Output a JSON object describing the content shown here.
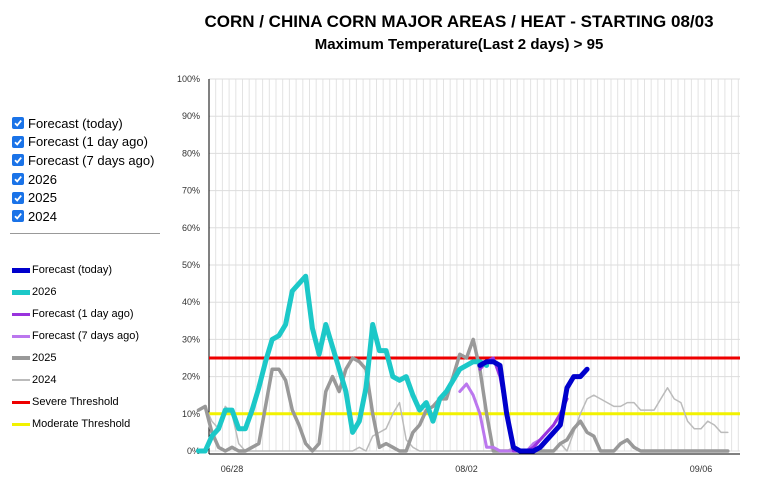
{
  "chart_data": {
    "type": "line",
    "title": "CORN / CHINA CORN MAJOR AREAS / HEAT - STARTING 08/03",
    "subtitle": "Maximum Temperature(Last 2 days) > 95",
    "ylim": [
      0,
      100
    ],
    "y_ticks": [
      "0%",
      "10%",
      "20%",
      "30%",
      "40%",
      "50%",
      "60%",
      "70%",
      "80%",
      "90%",
      "100%"
    ],
    "x_domain": [
      0,
      75
    ],
    "x_ticks": [
      {
        "x": 5,
        "label": "06/28"
      },
      {
        "x": 40,
        "label": "08/02"
      },
      {
        "x": 75,
        "label": "09/06"
      }
    ],
    "grid": true,
    "legend_position": "left",
    "series": [
      {
        "name": "2024",
        "color": "#bbbbbb",
        "width": 1.5,
        "x": [
          0,
          1,
          2,
          3,
          4,
          5,
          6,
          7,
          8,
          9,
          10,
          11,
          12,
          13,
          14,
          15,
          16,
          17,
          18,
          19,
          20,
          21,
          22,
          23,
          24,
          25,
          26,
          27,
          28,
          29,
          30,
          31,
          32,
          33,
          34,
          35,
          36,
          37,
          38,
          39,
          40,
          41,
          42,
          43,
          44,
          45,
          46,
          47,
          48,
          49,
          50,
          51,
          52,
          53,
          54,
          55,
          56,
          57,
          58,
          59,
          60,
          61,
          62,
          63,
          64,
          65,
          66,
          67,
          68,
          69,
          70,
          71,
          72,
          73,
          74,
          75,
          76,
          77,
          78,
          79
        ],
        "values": [
          11,
          12,
          8,
          6,
          12,
          10,
          2,
          0,
          0,
          0,
          0,
          0,
          0,
          0,
          0,
          0,
          0,
          0,
          0,
          0,
          0,
          0,
          0,
          0,
          1,
          0,
          4,
          5,
          6,
          10,
          13,
          3,
          1,
          0,
          0,
          0,
          0,
          0,
          0,
          0,
          0,
          0,
          0,
          0,
          0,
          0,
          0,
          1,
          0,
          0,
          1,
          0,
          0,
          0,
          2,
          0,
          5,
          10,
          14,
          15,
          14,
          13,
          12,
          12,
          13,
          13,
          11,
          11,
          11,
          14,
          17,
          14,
          13,
          8,
          6,
          6,
          8,
          7,
          5,
          5
        ]
      },
      {
        "name": "2025",
        "color": "#999999",
        "width": 3.5,
        "x": [
          0,
          1,
          2,
          3,
          4,
          5,
          6,
          7,
          8,
          9,
          10,
          11,
          12,
          13,
          14,
          15,
          16,
          17,
          18,
          19,
          20,
          21,
          22,
          23,
          24,
          25,
          26,
          27,
          28,
          29,
          30,
          31,
          32,
          33,
          34,
          35,
          36,
          37,
          38,
          39,
          40,
          41,
          42,
          43,
          44,
          45,
          46,
          47,
          48,
          49,
          50,
          51,
          52,
          53,
          54,
          55,
          56,
          57,
          58,
          59,
          60,
          61,
          62,
          63,
          64,
          65,
          66,
          67,
          68,
          69,
          70,
          71,
          72,
          73,
          74,
          75,
          76,
          77,
          78,
          79
        ],
        "values": [
          11,
          12,
          5,
          1,
          0,
          1,
          0,
          0,
          1,
          2,
          12,
          22,
          22,
          19,
          11,
          7,
          2,
          0,
          2,
          16,
          20,
          16,
          22,
          25,
          24,
          22,
          10,
          1,
          2,
          1,
          0,
          0,
          5,
          7,
          11,
          12,
          14,
          14,
          20,
          26,
          25,
          30,
          22,
          10,
          0,
          0,
          0,
          0,
          0,
          0,
          0,
          0,
          0,
          0,
          2,
          3,
          6,
          8,
          5,
          4,
          0,
          0,
          0,
          2,
          3,
          1,
          0,
          0,
          0,
          0,
          0,
          0,
          0,
          0,
          0,
          0,
          0,
          0,
          0,
          0
        ]
      },
      {
        "name": "Forecast (7 days ago)",
        "color": "#bb77ee",
        "width": 3,
        "x": [
          39,
          40,
          41,
          42,
          43,
          44,
          45,
          46,
          47,
          48,
          49,
          50,
          51,
          52,
          53,
          54,
          55
        ],
        "values": [
          16,
          18,
          15,
          10,
          1,
          1,
          0,
          0,
          0,
          0,
          0,
          2,
          3,
          5,
          7,
          10,
          14
        ]
      },
      {
        "name": "Forecast (1 day ago)",
        "color": "#9933dd",
        "width": 3,
        "x": [
          42,
          43,
          44,
          45,
          46,
          47,
          48,
          49,
          50,
          51,
          52,
          53,
          54,
          55
        ],
        "values": [
          22,
          24,
          25,
          20,
          10,
          0,
          0,
          0,
          1,
          3,
          5,
          7,
          10,
          14
        ]
      },
      {
        "name": "2026",
        "color": "#1cc8c8",
        "width": 5,
        "x": [
          0,
          1,
          2,
          3,
          4,
          5,
          6,
          7,
          8,
          9,
          10,
          11,
          12,
          13,
          14,
          15,
          16,
          17,
          18,
          19,
          20,
          21,
          22,
          23,
          24,
          25,
          26,
          27,
          28,
          29,
          30,
          31,
          32,
          33,
          34,
          35,
          36,
          37,
          38,
          39,
          40,
          41,
          42,
          43
        ],
        "values": [
          0,
          0,
          4,
          6,
          11,
          11,
          6,
          6,
          11,
          17,
          24,
          30,
          31,
          34,
          43,
          45,
          47,
          33,
          26,
          34,
          28,
          22,
          16,
          5,
          8,
          17,
          34,
          27,
          27,
          20,
          19,
          20,
          15,
          11,
          13,
          8,
          14,
          16,
          19,
          22,
          23,
          24,
          24,
          23
        ]
      },
      {
        "name": "Forecast (today)",
        "color": "#0000cc",
        "width": 5,
        "x": [
          42,
          43,
          44,
          45,
          46,
          47,
          48,
          49,
          50,
          51,
          52,
          53,
          54,
          55,
          56,
          57,
          58
        ],
        "values": [
          23,
          24,
          24,
          23,
          10,
          1,
          0,
          0,
          0,
          1,
          3,
          5,
          7,
          17,
          20,
          20,
          22
        ]
      }
    ],
    "thresholds": [
      {
        "name": "Severe Threshold",
        "value": 25,
        "color": "#ee0000"
      },
      {
        "name": "Moderate Threshold",
        "value": 10,
        "color": "#f2f200"
      }
    ]
  },
  "checkboxes": [
    {
      "label": "Forecast (today)"
    },
    {
      "label": "Forecast (1 day ago)"
    },
    {
      "label": "Forecast (7 days ago)"
    },
    {
      "label": "2026"
    },
    {
      "label": "2025"
    },
    {
      "label": "2024"
    }
  ],
  "legend": [
    {
      "label": "Forecast (today)",
      "color": "#0000cc",
      "thickness": 5
    },
    {
      "label": "2026",
      "color": "#1cc8c8",
      "thickness": 5
    },
    {
      "label": "Forecast (1 day ago)",
      "color": "#9933dd",
      "thickness": 3
    },
    {
      "label": "Forecast (7 days ago)",
      "color": "#bb77ee",
      "thickness": 3
    },
    {
      "label": "2025",
      "color": "#999999",
      "thickness": 4
    },
    {
      "label": "2024",
      "color": "#bbbbbb",
      "thickness": 2
    },
    {
      "label": "Severe Threshold",
      "color": "#ee0000",
      "thickness": 3
    },
    {
      "label": "Moderate Threshold",
      "color": "#f2f200",
      "thickness": 3
    }
  ]
}
